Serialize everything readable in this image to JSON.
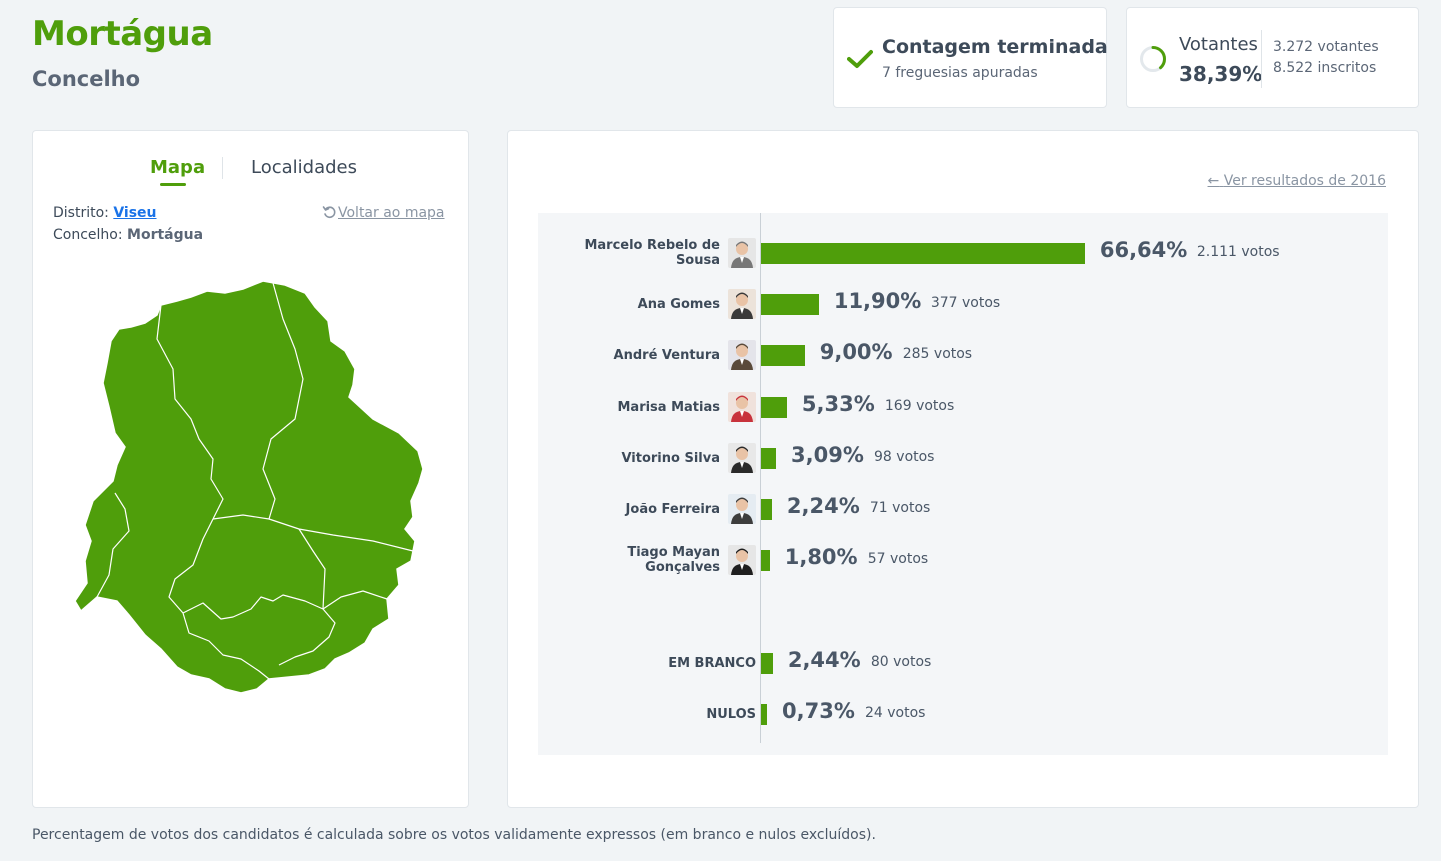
{
  "header": {
    "title": "Mortágua",
    "subtitle": "Concelho"
  },
  "status": {
    "title": "Contagem terminada",
    "subtitle": "7 freguesias apuradas"
  },
  "voters": {
    "label": "Votantes",
    "percent": "38,39%",
    "count": "3.272 votantes",
    "registered": "8.522 inscritos",
    "turnout_fraction": 0.3839
  },
  "map_panel": {
    "tabs": [
      "Mapa",
      "Localidades"
    ],
    "district_label": "Distrito:",
    "district_value": "Viseu",
    "municipality_label": "Concelho:",
    "municipality_value": "Mortágua",
    "back_link": "Voltar ao mapa",
    "map_color": "#4f9e0b"
  },
  "results": {
    "previous_link": "Ver resultados de 2016",
    "candidates": [
      {
        "name": "Marcelo Rebelo de Sousa",
        "percent": "66,64%",
        "votes": "2.111 votos",
        "value": 66.64
      },
      {
        "name": "Ana Gomes",
        "percent": "11,90%",
        "votes": "377 votos",
        "value": 11.9
      },
      {
        "name": "André Ventura",
        "percent": "9,00%",
        "votes": "285 votos",
        "value": 9.0
      },
      {
        "name": "Marisa Matias",
        "percent": "5,33%",
        "votes": "169 votos",
        "value": 5.33
      },
      {
        "name": "Vitorino Silva",
        "percent": "3,09%",
        "votes": "98 votos",
        "value": 3.09
      },
      {
        "name": "João Ferreira",
        "percent": "2,24%",
        "votes": "71 votos",
        "value": 2.24
      },
      {
        "name": "Tiago Mayan Gonçalves",
        "percent": "1,80%",
        "votes": "57 votos",
        "value": 1.8
      }
    ],
    "blank": {
      "name": "EM BRANCO",
      "percent": "2,44%",
      "votes": "80 votos",
      "value": 2.44
    },
    "null": {
      "name": "NULOS",
      "percent": "0,73%",
      "votes": "24 votos",
      "value": 0.73
    },
    "bar_color": "#4f9e0b"
  },
  "footnote": "Percentagem de votos dos candidatos é calculada sobre os votos validamente expressos (em branco e nulos excluídos)."
}
